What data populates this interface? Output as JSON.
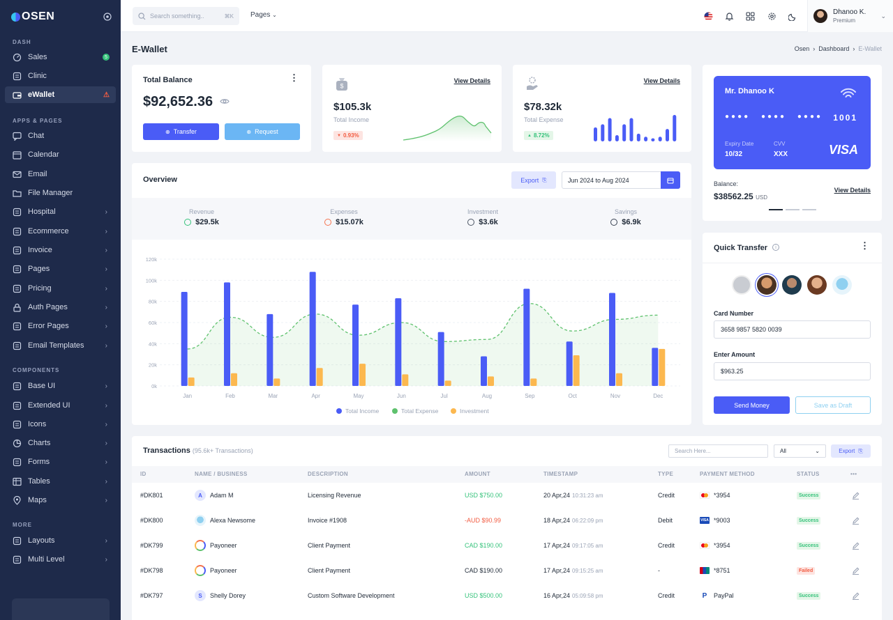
{
  "brand": {
    "name": "OSEN"
  },
  "sidebar": {
    "sections": [
      {
        "label": "DASH",
        "top": 56
      },
      {
        "label": "APPS & PAGES",
        "top": 169
      },
      {
        "label": "COMPONENTS",
        "top": 527
      },
      {
        "label": "MORE",
        "top": 749
      }
    ],
    "items": [
      {
        "label": "Sales",
        "icon": "gauge-icon",
        "badge": "5",
        "chevron": false,
        "active": false
      },
      {
        "label": "Clinic",
        "icon": "stethoscope-icon",
        "chevron": false,
        "active": false
      },
      {
        "label": "eWallet",
        "icon": "wallet-icon",
        "alert": true,
        "chevron": false,
        "active": true
      },
      {
        "label": "Chat",
        "icon": "chat-icon",
        "chevron": false
      },
      {
        "label": "Calendar",
        "icon": "calendar-icon",
        "chevron": false
      },
      {
        "label": "Email",
        "icon": "mail-icon",
        "chevron": false
      },
      {
        "label": "File Manager",
        "icon": "folder-icon",
        "chevron": false
      },
      {
        "label": "Hospital",
        "icon": "hospital-icon",
        "chevron": true
      },
      {
        "label": "Ecommerce",
        "icon": "basket-icon",
        "chevron": true
      },
      {
        "label": "Invoice",
        "icon": "invoice-icon",
        "chevron": true
      },
      {
        "label": "Pages",
        "icon": "pages-icon",
        "chevron": true
      },
      {
        "label": "Pricing",
        "icon": "pricing-icon",
        "chevron": true
      },
      {
        "label": "Auth Pages",
        "icon": "lock-icon",
        "chevron": true
      },
      {
        "label": "Error Pages",
        "icon": "error-icon",
        "chevron": true
      },
      {
        "label": "Email Templates",
        "icon": "template-icon",
        "chevron": true
      },
      {
        "label": "Base UI",
        "icon": "base-ui-icon",
        "chevron": true
      },
      {
        "label": "Extended UI",
        "icon": "extended-ui-icon",
        "chevron": true
      },
      {
        "label": "Icons",
        "icon": "icons-icon",
        "chevron": true
      },
      {
        "label": "Charts",
        "icon": "chart-pie-icon",
        "chevron": true
      },
      {
        "label": "Forms",
        "icon": "forms-icon",
        "chevron": true
      },
      {
        "label": "Tables",
        "icon": "table-icon",
        "chevron": true
      },
      {
        "label": "Maps",
        "icon": "map-pin-icon",
        "chevron": true
      },
      {
        "label": "Layouts",
        "icon": "layout-icon",
        "chevron": true
      },
      {
        "label": "Multi Level",
        "icon": "multi-level-icon",
        "chevron": true
      }
    ]
  },
  "topbar": {
    "search_placeholder": "Search something..",
    "shortcut": "⌘K",
    "pages_label": "Pages",
    "user_name": "Dhanoo K.",
    "user_role": "Premium"
  },
  "page": {
    "title": "E-Wallet",
    "breadcrumb": [
      "Osen",
      "Dashboard",
      "E-Wallet"
    ]
  },
  "balance": {
    "title": "Total Balance",
    "amount": "$92,652.36",
    "transfer": "Transfer",
    "request": "Request"
  },
  "income": {
    "value": "$105.3k",
    "label": "Total Income",
    "change": "0.93%",
    "link": "View Details"
  },
  "expense": {
    "value": "$78.32k",
    "label": "Total Expense",
    "change": "8.72%",
    "link": "View Details",
    "bars": [
      18,
      22,
      30,
      8,
      22,
      30,
      10,
      6,
      4,
      6,
      16,
      34
    ]
  },
  "card": {
    "holder": "Mr. Dhanoo K",
    "dots": "●●●● ●●●● ●●●●",
    "last4": "1001",
    "expiry_label": "Expiry Date",
    "expiry": "10/32",
    "cvv_label": "CVV",
    "cvv": "XXX",
    "brand": "VISA",
    "balance_label": "Balance:",
    "balance": "$38562.25",
    "currency": "USD",
    "link": "View Details"
  },
  "overview": {
    "title": "Overview",
    "export": "Export",
    "date_range": "Jun 2024 to Aug 2024",
    "stats": [
      {
        "label": "Revenue",
        "value": "$29.5k",
        "color": "#34c27a"
      },
      {
        "label": "Expenses",
        "value": "$15.07k",
        "color": "#f5744f"
      },
      {
        "label": "Investment",
        "value": "$3.6k",
        "color": "#4b5563"
      },
      {
        "label": "Savings",
        "value": "$6.9k",
        "color": "#374151"
      }
    ]
  },
  "chart_data": {
    "type": "bar",
    "categories": [
      "Jan",
      "Feb",
      "Mar",
      "Apr",
      "May",
      "Jun",
      "Jul",
      "Aug",
      "Sep",
      "Oct",
      "Nov",
      "Dec"
    ],
    "ylim": [
      0,
      120000
    ],
    "yticks": [
      "0k",
      "20k",
      "40k",
      "60k",
      "80k",
      "100k",
      "120k"
    ],
    "legend_placement": "bottom",
    "series": [
      {
        "name": "Total Income",
        "type": "bar",
        "color": "#4a5cf6",
        "values": [
          89000,
          98000,
          68000,
          108000,
          77000,
          83000,
          51000,
          28000,
          92000,
          42000,
          88000,
          36000
        ]
      },
      {
        "name": "Total Expense",
        "type": "area",
        "color": "#5ec16d",
        "values": [
          35000,
          65000,
          46000,
          68000,
          48000,
          60000,
          42000,
          44000,
          78000,
          52000,
          63000,
          67000
        ]
      },
      {
        "name": "Investment",
        "type": "bar",
        "color": "#fcb84f",
        "values": [
          8000,
          12000,
          7000,
          17000,
          21000,
          11000,
          5000,
          9000,
          7000,
          29000,
          12000,
          35000
        ]
      }
    ]
  },
  "quick_transfer": {
    "title": "Quick Transfer",
    "card_label": "Card Number",
    "card_value": "3658 9857 5820 0039",
    "amount_label": "Enter Amount",
    "amount_value": "$963.25",
    "send": "Send Money",
    "draft": "Save as Draft"
  },
  "transactions": {
    "title": "Transactions",
    "count": "(95.6k+ Transactions)",
    "search_placeholder": "Search Here...",
    "filter": "All",
    "export": "Export",
    "columns": [
      "ID",
      "NAME / BUSINESS",
      "DESCRIPTION",
      "AMOUNT",
      "TIMESTAMP",
      "TYPE",
      "PAYMENT METHOD",
      "STATUS",
      "•••"
    ],
    "rows": [
      {
        "id": "#DK801",
        "name": "Adam M",
        "initial": "A",
        "desc": "Licensing Revenue",
        "amount": "USD $750.00",
        "amount_color": "#34c27a",
        "date": "20 Apr,24",
        "time": "10:31:23 am",
        "type": "Credit",
        "pm": "mastercard",
        "pm_text": "*3954",
        "status": "Success"
      },
      {
        "id": "#DK800",
        "name": "Alexa Newsome",
        "initial": "",
        "desc": "Invoice #1908",
        "amount": "-AUD $90.99",
        "amount_color": "#f25c42",
        "date": "18 Apr,24",
        "time": "06:22:09 pm",
        "type": "Debit",
        "pm": "visa",
        "pm_text": "*9003",
        "status": "Success"
      },
      {
        "id": "#DK799",
        "name": "Payoneer",
        "initial": "",
        "desc": "Client Payment",
        "amount": "CAD $190.00",
        "amount_color": "#34c27a",
        "date": "17 Apr,24",
        "time": "09:17:05 am",
        "type": "Credit",
        "pm": "mastercard",
        "pm_text": "*3954",
        "status": "Success"
      },
      {
        "id": "#DK798",
        "name": "Payoneer",
        "initial": "",
        "desc": "Client Payment",
        "amount": "CAD $190.00",
        "amount_color": "#1f2937",
        "date": "17 Apr,24",
        "time": "09:15:25 am",
        "type": "-",
        "pm": "unionpay",
        "pm_text": "*8751",
        "status": "Failed"
      },
      {
        "id": "#DK797",
        "name": "Shelly Dorey",
        "initial": "S",
        "desc": "Custom Software Development",
        "amount": "USD $500.00",
        "amount_color": "#34c27a",
        "date": "16 Apr,24",
        "time": "05:09:58 pm",
        "type": "Credit",
        "pm": "paypal",
        "pm_text": "PayPal",
        "status": "Success"
      }
    ]
  }
}
